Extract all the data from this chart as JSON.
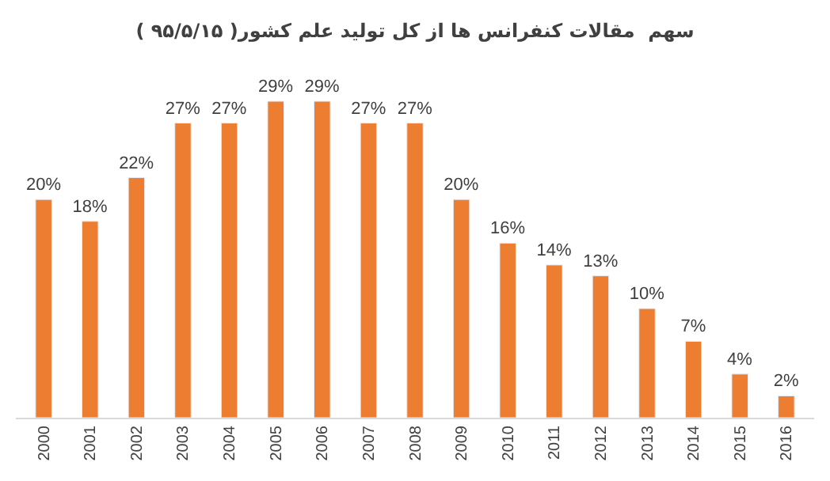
{
  "chart_data": {
    "type": "bar",
    "title": "سهم  مقالات کنفرانس ها از کل تولید علم کشور( ۹۵/۵/۱۵ )",
    "categories": [
      "2000",
      "2001",
      "2002",
      "2003",
      "2004",
      "2005",
      "2006",
      "2007",
      "2008",
      "2009",
      "2010",
      "2011",
      "2012",
      "2013",
      "2014",
      "2015",
      "2016"
    ],
    "values": [
      20,
      18,
      22,
      27,
      27,
      29,
      29,
      27,
      27,
      20,
      16,
      14,
      13,
      10,
      7,
      4,
      2
    ],
    "value_labels": [
      "20%",
      "18%",
      "22%",
      "27%",
      "27%",
      "29%",
      "29%",
      "27%",
      "27%",
      "20%",
      "16%",
      "14%",
      "13%",
      "10%",
      "7%",
      "4%",
      "2%"
    ],
    "color": "#ed7d31"
  }
}
